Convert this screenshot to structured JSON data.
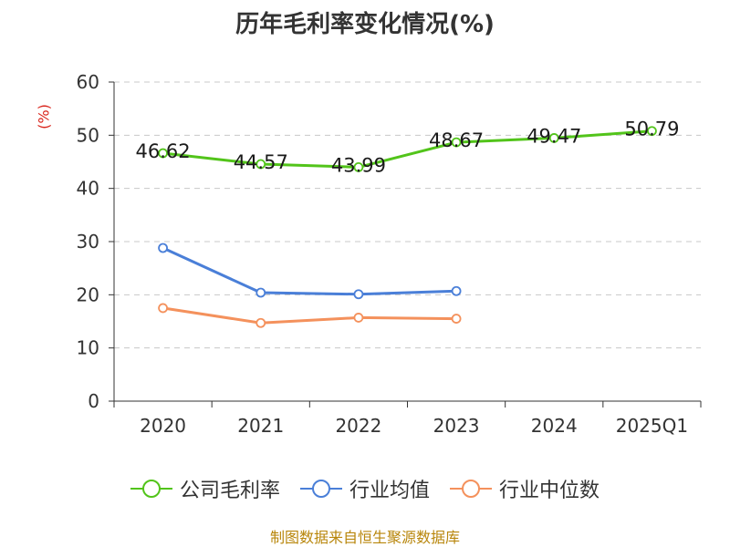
{
  "chart_data": {
    "type": "line",
    "title": "历年毛利率变化情况(%)",
    "ylabel": "(%)",
    "categories": [
      "2020",
      "2021",
      "2022",
      "2023",
      "2024",
      "2025Q1"
    ],
    "ylim": [
      0,
      60
    ],
    "yticks": [
      0,
      10,
      20,
      30,
      40,
      50,
      60
    ],
    "grid": true,
    "legend_position": "bottom",
    "series": [
      {
        "name": "公司毛利率",
        "color": "#52c41a",
        "values": [
          46.62,
          44.57,
          43.99,
          48.67,
          49.47,
          50.79
        ],
        "labels": [
          "46.62",
          "44.57",
          "43.99",
          "48.67",
          "49.47",
          "50.79"
        ]
      },
      {
        "name": "行业均值",
        "color": "#4a7fd8",
        "values": [
          28.8,
          20.4,
          20.1,
          20.7,
          null,
          null
        ]
      },
      {
        "name": "行业中位数",
        "color": "#f4915c",
        "values": [
          17.5,
          14.7,
          15.7,
          15.5,
          null,
          null
        ]
      }
    ]
  },
  "source": "制图数据来自恒生聚源数据库"
}
